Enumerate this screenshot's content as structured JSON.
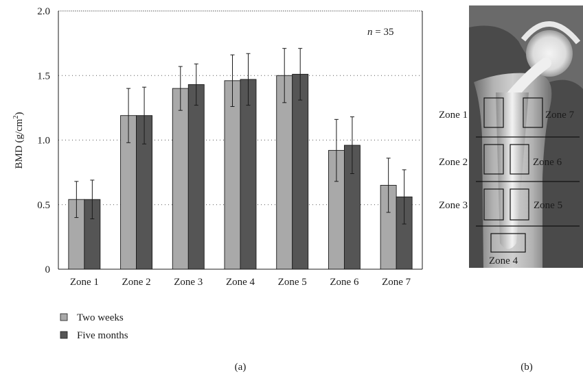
{
  "chart_data": [
    {
      "type": "bar",
      "panel_label": "(a)",
      "ylabel": "BMD (g/cm",
      "ylabel_sup": "2",
      "ylabel_end": ")",
      "annotation_italic": "n",
      "annotation_rest": " = 35",
      "categories": [
        "Zone 1",
        "Zone 2",
        "Zone 3",
        "Zone 4",
        "Zone 5",
        "Zone 6",
        "Zone 7"
      ],
      "ylim": [
        0,
        2.0
      ],
      "yticks": [
        "0",
        "0.5",
        "1.0",
        "1.5",
        "2.0"
      ],
      "ytick_values": [
        0,
        0.5,
        1.0,
        1.5,
        2.0
      ],
      "grid": "dotted horizontal at 0.5, 1.0, 1.5, 2.0",
      "legend_position": "bottom-left",
      "series": [
        {
          "name": "Two weeks",
          "color": "#a9a9a9",
          "values": [
            0.54,
            1.19,
            1.4,
            1.46,
            1.5,
            0.92,
            0.65
          ],
          "errors": [
            0.14,
            0.21,
            0.17,
            0.2,
            0.21,
            0.24,
            0.21
          ]
        },
        {
          "name": "Five months",
          "color": "#555555",
          "values": [
            0.54,
            1.19,
            1.43,
            1.47,
            1.51,
            0.96,
            0.56
          ],
          "errors": [
            0.15,
            0.22,
            0.16,
            0.2,
            0.2,
            0.22,
            0.21
          ]
        }
      ]
    }
  ],
  "image_panel": {
    "panel_label": "(b)",
    "zone_labels": [
      "Zone 1",
      "Zone 2",
      "Zone 3",
      "Zone 4",
      "Zone 5",
      "Zone 6",
      "Zone 7"
    ]
  }
}
